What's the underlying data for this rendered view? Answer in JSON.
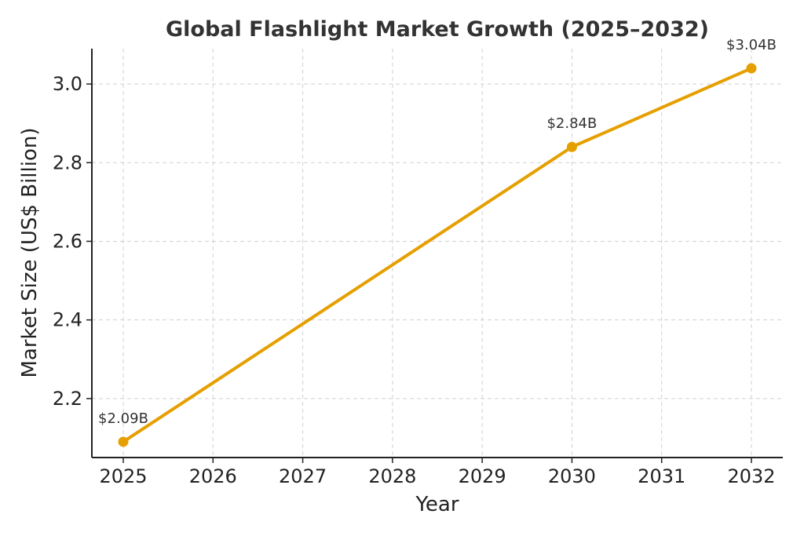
{
  "chart_data": {
    "type": "line",
    "title": "Global Flashlight Market Growth (2025–2032)",
    "xlabel": "Year",
    "ylabel": "Market Size (US$ Billion)",
    "x_ticks": [
      "2025",
      "2026",
      "2027",
      "2028",
      "2029",
      "2030",
      "2031",
      "2032"
    ],
    "y_ticks": [
      "2.2",
      "2.4",
      "2.6",
      "2.8",
      "3.0"
    ],
    "xlim": [
      2024.65,
      2032.35
    ],
    "ylim": [
      2.05,
      3.09
    ],
    "grid": true,
    "series": [
      {
        "x": [
          2025,
          2030,
          2032
        ],
        "y": [
          2.09,
          2.84,
          3.04
        ],
        "labels": [
          "$2.09B",
          "$2.84B",
          "$3.04B"
        ],
        "color": "#E69F00"
      }
    ]
  }
}
